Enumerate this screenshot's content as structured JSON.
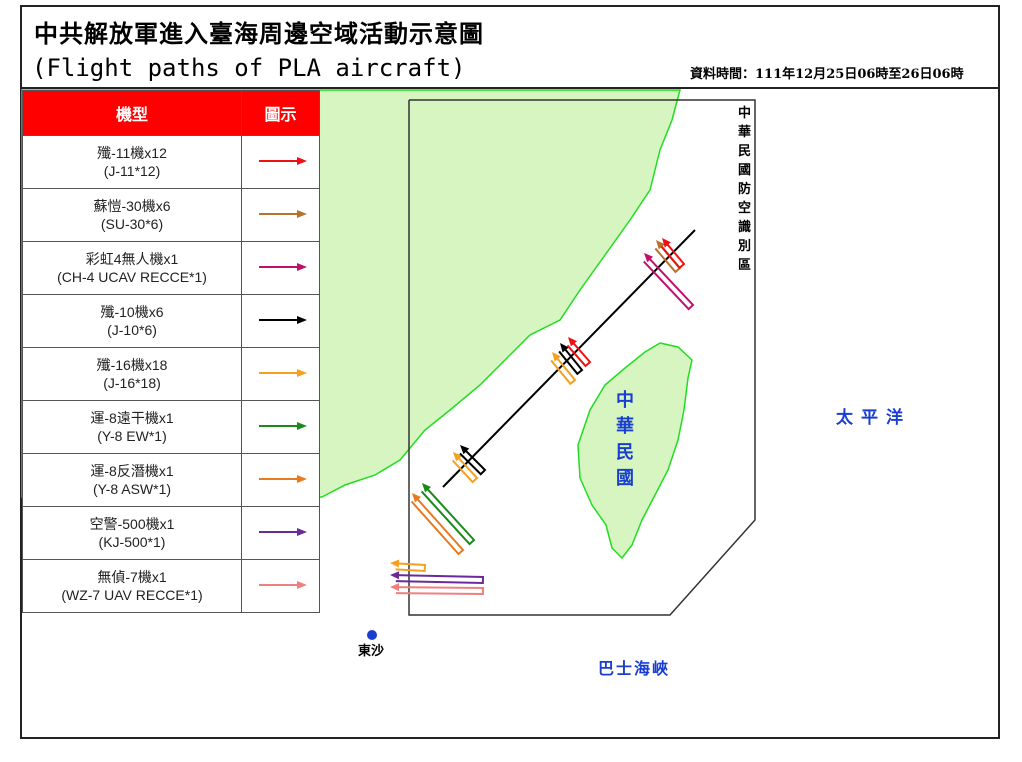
{
  "title": "中共解放軍進入臺海周邊空域活動示意圖",
  "subtitle": "(Flight paths of PLA aircraft)",
  "data_time": "資料時間：111年12月25日06時至26日06時",
  "legend": {
    "col_type": "機型",
    "col_icon": "圖示",
    "items": [
      {
        "zh": "殲-11機x12",
        "en": "(J-11*12)",
        "color": "#ee1111"
      },
      {
        "zh": "蘇愷-30機x6",
        "en": "(SU-30*6)",
        "color": "#b8732a"
      },
      {
        "zh": "彩虹4無人機x1",
        "en": "(CH-4 UCAV RECCE*1)",
        "color": "#c0106e"
      },
      {
        "zh": "殲-10機x6",
        "en": "(J-10*6)",
        "color": "#000000"
      },
      {
        "zh": "殲-16機x18",
        "en": "(J-16*18)",
        "color": "#f5a020"
      },
      {
        "zh": "運-8遠干機x1",
        "en": "(Y-8 EW*1)",
        "color": "#1a8a1a"
      },
      {
        "zh": "運-8反潛機x1",
        "en": "(Y-8 ASW*1)",
        "color": "#e87a20"
      },
      {
        "zh": "空警-500機x1",
        "en": "(KJ-500*1)",
        "color": "#6a2a9a"
      },
      {
        "zh": "無偵-7機x1",
        "en": "(WZ-7 UAV RECCE*1)",
        "color": "#f08080"
      }
    ]
  },
  "map": {
    "adiz_label": "中華民國防空識別區",
    "taiwan_label": "中華民國",
    "pacific_label": "太平洋",
    "bashi_label": "巴士海峽",
    "pratas_label": "東沙",
    "land_color": "#d6f5c0",
    "coast_color": "#22dd22",
    "label_color": "#1a3fd0"
  }
}
